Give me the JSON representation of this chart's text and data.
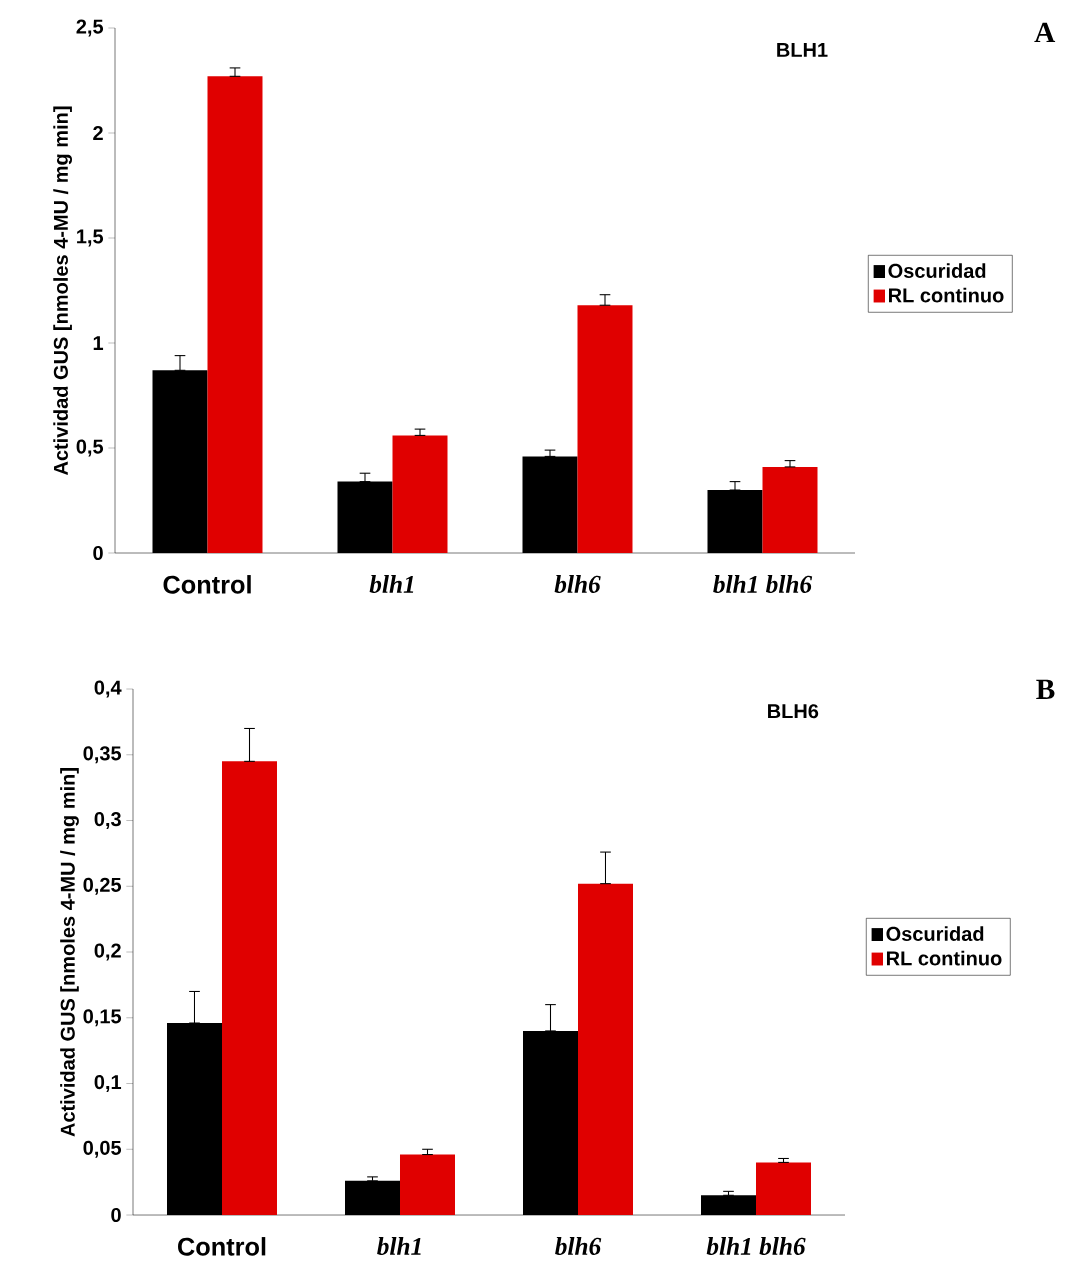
{
  "chart_data": [
    {
      "type": "bar",
      "title": "BLH1",
      "ylabel": "Actividad GUS [nmoles 4-MU / mg min]",
      "categories": [
        "Control",
        "blh1",
        "blh6",
        "blh1 blh6"
      ],
      "series": [
        {
          "name": "Oscuridad",
          "color": "#000000",
          "values": [
            0.87,
            0.34,
            0.46,
            0.3
          ],
          "errors": [
            [
              0.87,
              0.94
            ],
            [
              0.34,
              0.38
            ],
            [
              0.46,
              0.49
            ],
            [
              0.3,
              0.34
            ]
          ]
        },
        {
          "name": "RL continuo",
          "color": "#e00000",
          "values": [
            2.27,
            0.56,
            1.18,
            0.41
          ],
          "errors": [
            [
              2.27,
              2.31
            ],
            [
              0.56,
              0.59
            ],
            [
              1.18,
              1.23
            ],
            [
              0.41,
              0.44
            ]
          ]
        }
      ],
      "ylim": [
        0,
        2.5
      ],
      "yticks": [
        0,
        {
          "value": 0.5,
          "label": "0,5"
        },
        1,
        {
          "value": 1.5,
          "label": "1,5"
        },
        2,
        {
          "value": 2.5,
          "label": "2,5"
        }
      ],
      "legend": "right",
      "annotations": [
        "A"
      ]
    },
    {
      "type": "bar",
      "title": "BLH6",
      "ylabel": "Actividad GUS [nmoles 4-MU / mg min]",
      "categories": [
        "Control",
        "blh1",
        "blh6",
        "blh1 blh6"
      ],
      "series": [
        {
          "name": "Oscuridad",
          "color": "#000000",
          "values": [
            0.146,
            0.026,
            0.14,
            0.015
          ],
          "errors": [
            [
              0.146,
              0.17
            ],
            [
              0.026,
              0.029
            ],
            [
              0.14,
              0.16
            ],
            [
              0.015,
              0.018
            ]
          ]
        },
        {
          "name": "RL continuo",
          "color": "#e00000",
          "values": [
            0.345,
            0.046,
            0.252,
            0.04
          ],
          "errors": [
            [
              0.345,
              0.37
            ],
            [
              0.046,
              0.05
            ],
            [
              0.252,
              0.276
            ],
            [
              0.04,
              0.043
            ]
          ]
        }
      ],
      "ylim": [
        0,
        0.4
      ],
      "yticks": [
        0,
        {
          "value": 0.05,
          "label": "0,05"
        },
        {
          "value": 0.1,
          "label": "0,1"
        },
        {
          "value": 0.15,
          "label": "0,15"
        },
        {
          "value": 0.2,
          "label": "0,2"
        },
        {
          "value": 0.25,
          "label": "0,25"
        },
        {
          "value": 0.3,
          "label": "0,3"
        },
        {
          "value": 0.35,
          "label": "0,35"
        },
        {
          "value": 0.4,
          "label": "0,4"
        }
      ],
      "legend": "right",
      "annotations": [
        "B"
      ]
    }
  ]
}
